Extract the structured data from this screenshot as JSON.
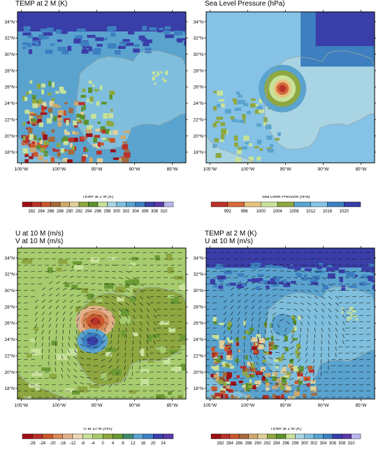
{
  "panels": [
    {
      "id": "temp",
      "titles": [
        "TEMP at 2 M   (K)"
      ],
      "colorbar_label": "TEMP at 2 M   (K)",
      "colorbar_ticks": [
        "282",
        "284",
        "286",
        "288",
        "290",
        "292",
        "294",
        "296",
        "298",
        "300",
        "302",
        "304",
        "306",
        "308",
        "310"
      ],
      "palette": [
        "#9e0f14",
        "#b8322a",
        "#c9582e",
        "#a46a3c",
        "#cfa86b",
        "#e0cf99",
        "#8ea740",
        "#5c912d",
        "#c8e29a",
        "#a9d4e4",
        "#7fbfdd",
        "#5aa3cf",
        "#3d7fc0",
        "#3a3ea8",
        "#5a3aa8",
        "#b8b6ec"
      ],
      "overlay": "none",
      "storm": "none",
      "dominant": 9
    },
    {
      "id": "slp",
      "titles": [
        "Sea Level Pressure   (hPa)"
      ],
      "colorbar_label": "Sea Level Pressure   (hPa)",
      "colorbar_ticks": [
        "992",
        "996",
        "1000",
        "1004",
        "1008",
        "1012",
        "1016",
        "1020"
      ],
      "palette": [
        "#b8322a",
        "#d56a3a",
        "#e6c480",
        "#c8e29a",
        "#8ea740",
        "#5aa3cf",
        "#85c2e6",
        "#3d7fc0",
        "#3a3ea8"
      ],
      "overlay": "none",
      "storm": "slp",
      "dominant": 6
    },
    {
      "id": "uv",
      "titles": [
        "U at 10 M   (m/s)",
        "V at 10 M   (m/s)"
      ],
      "colorbar_label": "U at 10 M   (m/s)",
      "colorbar_ticks": [
        "-28",
        "-24",
        "-20",
        "-16",
        "-12",
        "-8",
        "-4",
        "0",
        "4",
        "8",
        "12",
        "16",
        "20",
        "24"
      ],
      "palette": [
        "#9e0f14",
        "#b8322a",
        "#c9582e",
        "#d98a5a",
        "#e3b08a",
        "#f0d7b8",
        "#c8e29a",
        "#a6cc6e",
        "#8ea740",
        "#6a9a34",
        "#3f8a6e",
        "#5aa3cf",
        "#3d7fc0",
        "#3a3ea8",
        "#5a3aa8"
      ],
      "overlay": "arrows",
      "storm": "uv",
      "dominant": 7
    },
    {
      "id": "temp-wind",
      "titles": [
        "TEMP at 2 M   (K)",
        "U at 10 M   (m/s)"
      ],
      "colorbar_label": "TEMP at 2 M   (K)",
      "colorbar_ticks": [
        "282",
        "284",
        "286",
        "288",
        "290",
        "292",
        "294",
        "296",
        "298",
        "300",
        "302",
        "304",
        "306",
        "308",
        "310"
      ],
      "palette": [
        "#9e0f14",
        "#b8322a",
        "#c9582e",
        "#a46a3c",
        "#cfa86b",
        "#e0cf99",
        "#8ea740",
        "#5c912d",
        "#c8e29a",
        "#a9d4e4",
        "#7fbfdd",
        "#5aa3cf",
        "#3d7fc0",
        "#3a3ea8",
        "#5a3aa8",
        "#b8b6ec"
      ],
      "overlay": "arrows",
      "storm": "vortex",
      "dominant": 9
    }
  ],
  "chart_data": [
    {
      "type": "heatmap",
      "title": "TEMP at 2 M   (K)",
      "xlabel": "",
      "ylabel": "",
      "x_ticks": [
        "105°W",
        "100°W",
        "95°W",
        "90°W",
        "85°W"
      ],
      "y_ticks": [
        "18°N",
        "20°N",
        "22°N",
        "24°N",
        "26°N",
        "28°N",
        "30°N",
        "32°N",
        "34°N"
      ],
      "xlim": [
        -105.5,
        -83.2
      ],
      "ylim": [
        16.7,
        35.2
      ],
      "legend_levels": [
        282,
        284,
        286,
        288,
        290,
        292,
        294,
        296,
        298,
        300,
        302,
        304,
        306,
        308,
        310
      ]
    },
    {
      "type": "heatmap",
      "title": "Sea Level Pressure   (hPa)",
      "xlabel": "",
      "ylabel": "",
      "x_ticks": [
        "105°W",
        "100°W",
        "95°W",
        "90°W",
        "85°W"
      ],
      "y_ticks": [
        "18°N",
        "20°N",
        "22°N",
        "24°N",
        "26°N",
        "28°N",
        "30°N",
        "32°N",
        "34°N"
      ],
      "xlim": [
        -105.5,
        -83.2
      ],
      "ylim": [
        16.7,
        35.2
      ],
      "legend_levels": [
        992,
        996,
        1000,
        1004,
        1008,
        1012,
        1016,
        1020
      ]
    },
    {
      "type": "heatmap",
      "title": "U at 10 M   (m/s)",
      "subtitle": "V at 10 M   (m/s)",
      "xlabel": "",
      "ylabel": "",
      "x_ticks": [
        "105°W",
        "100°W",
        "95°W",
        "90°W",
        "85°W"
      ],
      "y_ticks": [
        "18°N",
        "20°N",
        "22°N",
        "24°N",
        "26°N",
        "28°N",
        "30°N",
        "32°N",
        "34°N"
      ],
      "xlim": [
        -105.5,
        -83.2
      ],
      "ylim": [
        16.7,
        35.2
      ],
      "legend_levels": [
        -28,
        -24,
        -20,
        -16,
        -12,
        -8,
        -4,
        0,
        4,
        8,
        12,
        16,
        20,
        24
      ]
    },
    {
      "type": "heatmap",
      "title": "TEMP at 2 M   (K)",
      "subtitle": "U at 10 M   (m/s)",
      "xlabel": "",
      "ylabel": "",
      "x_ticks": [
        "105°W",
        "100°W",
        "95°W",
        "90°W",
        "85°W"
      ],
      "y_ticks": [
        "18°N",
        "20°N",
        "22°N",
        "24°N",
        "26°N",
        "28°N",
        "30°N",
        "32°N",
        "34°N"
      ],
      "xlim": [
        -105.5,
        -83.2
      ],
      "ylim": [
        16.7,
        35.2
      ],
      "legend_levels": [
        282,
        284,
        286,
        288,
        290,
        292,
        294,
        296,
        298,
        300,
        302,
        304,
        306,
        308,
        310
      ]
    }
  ]
}
